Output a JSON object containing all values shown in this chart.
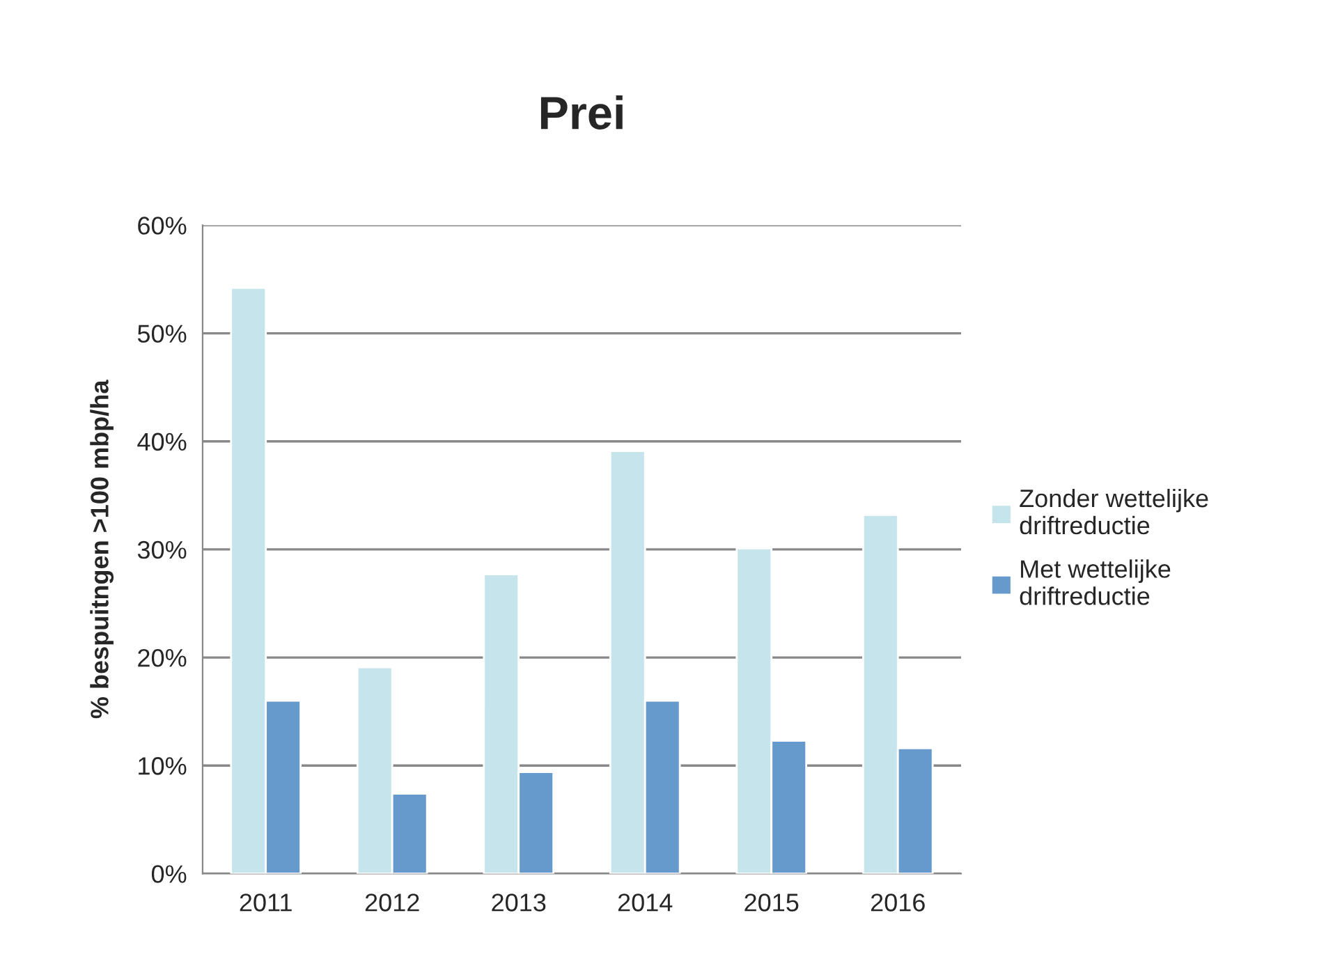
{
  "chart_data": {
    "type": "bar",
    "title": "Prei",
    "ylabel": "% bespuitngen >100 mbp/ha",
    "categories": [
      "2011",
      "2012",
      "2013",
      "2014",
      "2015",
      "2016"
    ],
    "series": [
      {
        "name": "Zonder wettelijke\ndriftreductie",
        "color": "#c6e4ec",
        "values": [
          54.2,
          19.1,
          27.7,
          39.1,
          30.1,
          33.2
        ]
      },
      {
        "name": "Met wettelijke\ndriftreductie",
        "color": "#6699cc",
        "values": [
          16.0,
          7.4,
          9.4,
          16.0,
          12.3,
          11.6
        ]
      }
    ],
    "ylim": [
      0,
      60
    ],
    "yticks": [
      {
        "value": 0,
        "label": "0%"
      },
      {
        "value": 10,
        "label": "10%"
      },
      {
        "value": 20,
        "label": "20%"
      },
      {
        "value": 30,
        "label": "30%"
      },
      {
        "value": 40,
        "label": "40%"
      },
      {
        "value": 50,
        "label": "50%"
      },
      {
        "value": 60,
        "label": "60%"
      }
    ],
    "grid": "y",
    "legend": "right"
  }
}
